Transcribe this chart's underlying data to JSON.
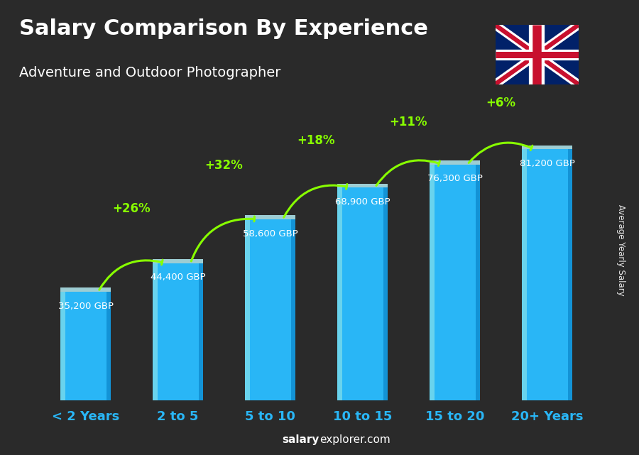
{
  "title": "Salary Comparison By Experience",
  "subtitle": "Adventure and Outdoor Photographer",
  "categories": [
    "< 2 Years",
    "2 to 5",
    "5 to 10",
    "10 to 15",
    "15 to 20",
    "20+ Years"
  ],
  "values": [
    35200,
    44400,
    58600,
    68900,
    76300,
    81200
  ],
  "labels": [
    "35,200 GBP",
    "44,400 GBP",
    "58,600 GBP",
    "68,900 GBP",
    "76,300 GBP",
    "81,200 GBP"
  ],
  "pct_changes": [
    "+26%",
    "+32%",
    "+18%",
    "+11%",
    "+6%"
  ],
  "bar_color": "#29b6f6",
  "bar_highlight": "#80deea",
  "bar_shadow": "#0277bd",
  "bar_top": "#b2ebf2",
  "bg_color": "#2a2a2a",
  "title_color": "#ffffff",
  "subtitle_color": "#ffffff",
  "label_color": "#ffffff",
  "pct_color": "#88ff00",
  "cat_color": "#29b6f6",
  "ylabel": "Average Yearly Salary",
  "footer_bold": "salary",
  "footer_normal": "explorer.com",
  "ylim": [
    0,
    100000
  ],
  "figsize": [
    9.0,
    6.41
  ],
  "dpi": 100,
  "bar_width": 0.55,
  "arrow_configs": [
    [
      0,
      1,
      0.6,
      "+26%"
    ],
    [
      1,
      2,
      0.74,
      "+32%"
    ],
    [
      2,
      3,
      0.82,
      "+18%"
    ],
    [
      3,
      4,
      0.88,
      "+11%"
    ],
    [
      4,
      5,
      0.94,
      "+6%"
    ]
  ]
}
